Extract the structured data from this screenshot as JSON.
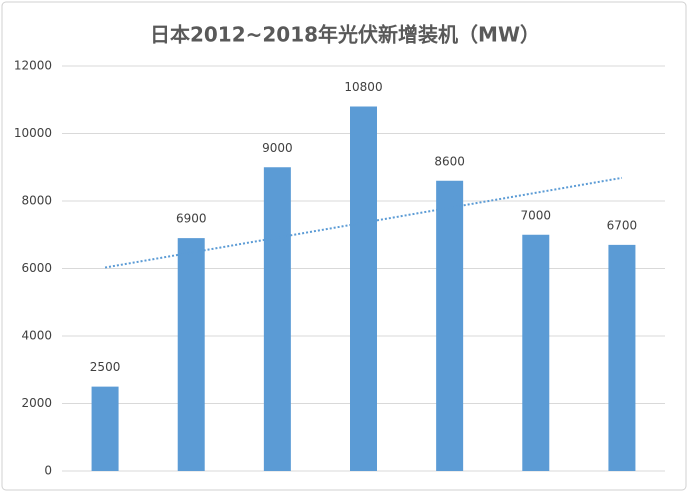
{
  "chart_data": {
    "type": "bar",
    "title": "日本2012~2018年光伏新增装机（MW）",
    "categories": [
      null,
      null,
      null,
      null,
      null,
      null,
      null
    ],
    "values": [
      2500,
      6900,
      9000,
      10800,
      8600,
      7000,
      6700
    ],
    "color": "#5b9bd5",
    "ylim": [
      0,
      12000
    ],
    "yticks": [
      0,
      2000,
      4000,
      6000,
      8000,
      10000,
      12000
    ],
    "grid": true,
    "trendline": "linear"
  }
}
